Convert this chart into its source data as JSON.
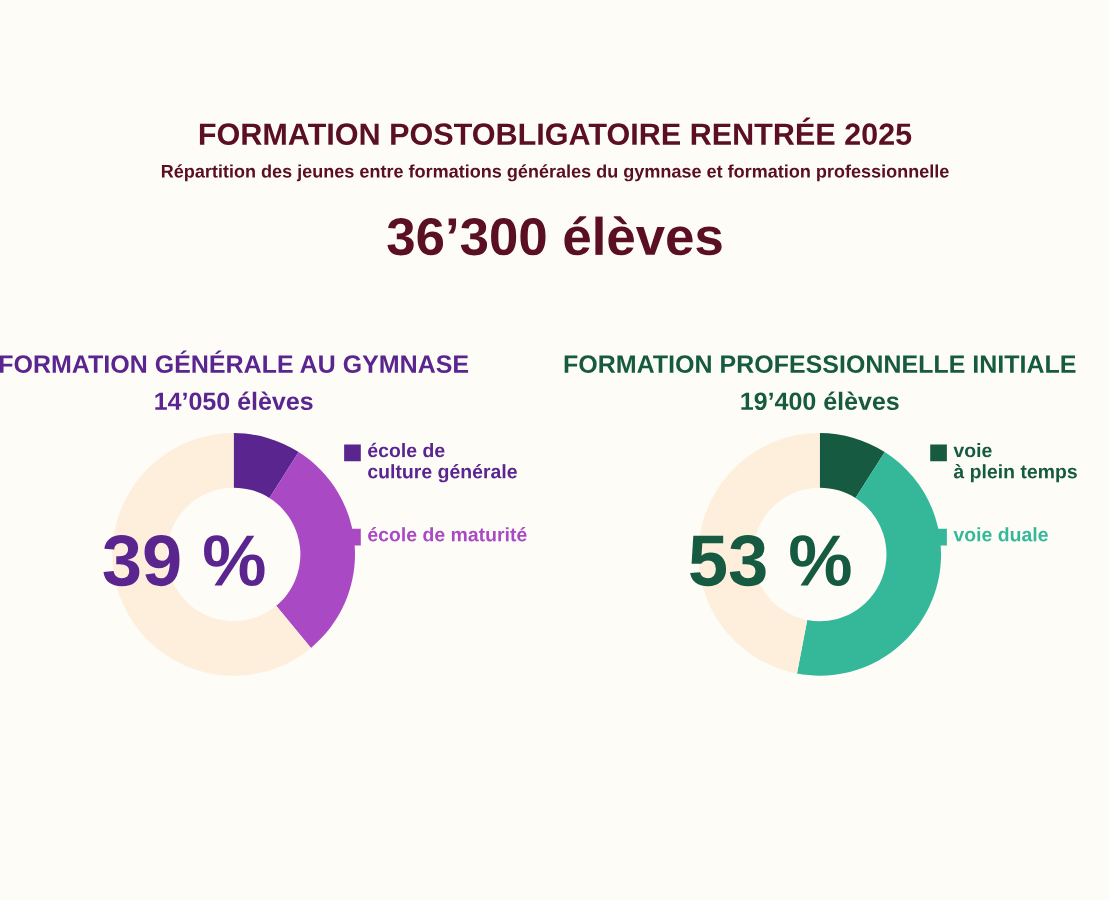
{
  "chart_data": [
    {
      "type": "other",
      "title": "FORMATION POSTOBLIGATOIRE RENTRÉE 2025",
      "subtitle": "Répartition des jeunes entre formations générales du gymnase et formation professionnelle",
      "annotations": [
        "36’300 élèves"
      ]
    },
    {
      "type": "donut",
      "title": "FORMATION GÉNÉRALE AU GYMNASE",
      "subtitle": "14’050 élèves",
      "categories": [
        "école de\nculture générale",
        "école de maturité",
        null
      ],
      "values": [
        9,
        30,
        61
      ],
      "colors": [
        "#5b2590",
        "#a94ac4",
        "#fdefdc"
      ],
      "annotations": [
        "39 %"
      ],
      "legend": "right"
    },
    {
      "type": "donut",
      "title": "FORMATION PROFESSIONNELLE INITIALE",
      "subtitle": "19’400 élèves",
      "categories": [
        "voie\nà plein temps",
        "voie duale",
        null
      ],
      "values": [
        9,
        44,
        47
      ],
      "colors": [
        "#175a42",
        "#35b89a",
        "#fdefdc"
      ],
      "annotations": [
        "53 %"
      ],
      "legend": "right"
    }
  ]
}
